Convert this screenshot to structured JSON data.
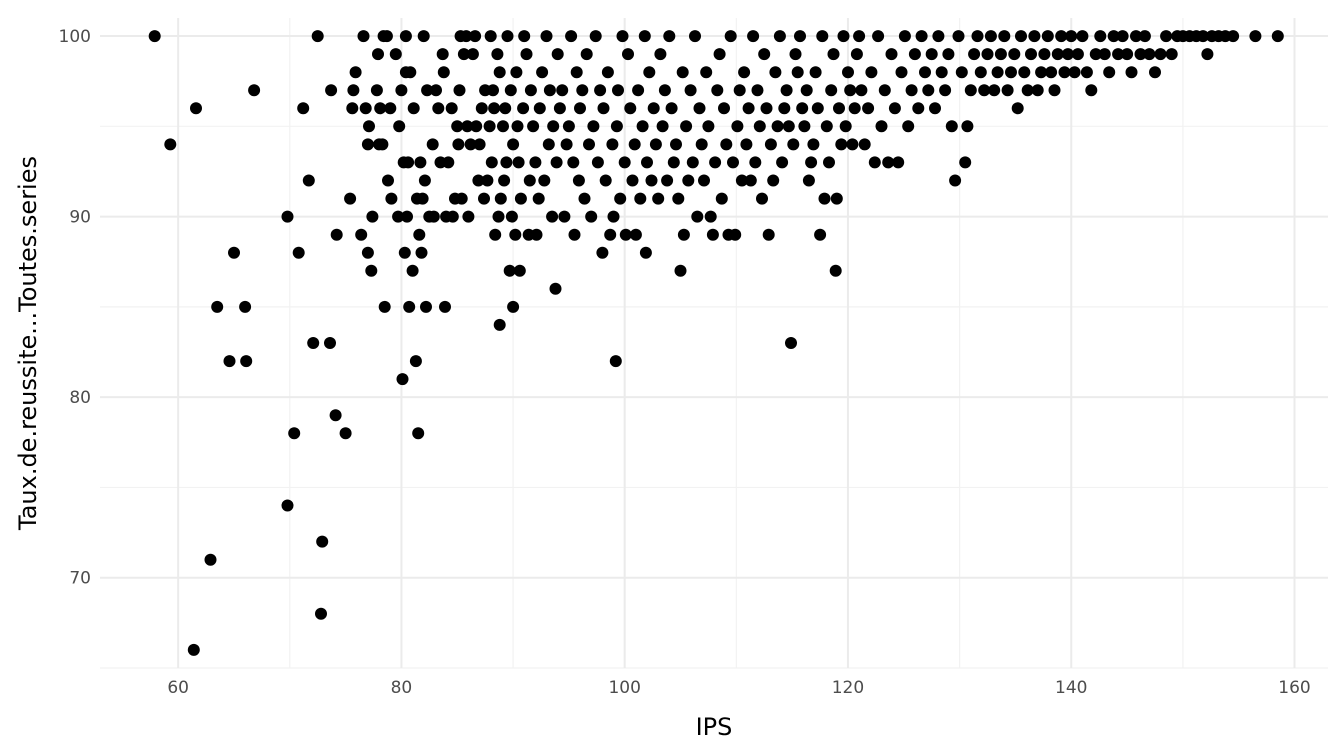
{
  "chart_data": {
    "type": "scatter",
    "title": "",
    "xlabel": "IPS",
    "ylabel": "Taux.de.reussite...Toutes.series",
    "xlim": [
      53,
      163
    ],
    "ylim": [
      65,
      101
    ],
    "x_ticks": [
      60,
      80,
      100,
      120,
      140,
      160
    ],
    "x_tick_labels": [
      "60",
      "80",
      "100",
      "120",
      "140",
      "160"
    ],
    "y_ticks": [
      70,
      80,
      90,
      100
    ],
    "y_tick_labels": [
      "70",
      "80",
      "90",
      "100"
    ],
    "grid": true,
    "legend": "none",
    "point_color": "#000000",
    "points": [
      [
        57.9,
        100
      ],
      [
        59.3,
        94
      ],
      [
        61.4,
        66
      ],
      [
        61.6,
        96
      ],
      [
        62.9,
        71
      ],
      [
        63.5,
        85
      ],
      [
        64.6,
        82
      ],
      [
        65.0,
        88
      ],
      [
        66.0,
        85
      ],
      [
        66.1,
        82
      ],
      [
        66.8,
        97
      ],
      [
        69.8,
        74
      ],
      [
        69.8,
        90
      ],
      [
        70.4,
        78
      ],
      [
        70.8,
        88
      ],
      [
        71.2,
        96
      ],
      [
        71.7,
        92
      ],
      [
        72.1,
        83
      ],
      [
        72.5,
        100
      ],
      [
        72.8,
        68
      ],
      [
        72.9,
        72
      ],
      [
        73.6,
        83
      ],
      [
        73.7,
        97
      ],
      [
        74.1,
        79
      ],
      [
        74.2,
        89
      ],
      [
        75.0,
        78
      ],
      [
        75.4,
        91
      ],
      [
        75.6,
        96
      ],
      [
        75.7,
        97
      ],
      [
        75.9,
        98
      ],
      [
        76.4,
        89
      ],
      [
        76.6,
        100
      ],
      [
        76.8,
        96
      ],
      [
        77.0,
        88
      ],
      [
        77.0,
        94
      ],
      [
        77.1,
        95
      ],
      [
        77.3,
        87
      ],
      [
        77.4,
        90
      ],
      [
        77.8,
        97
      ],
      [
        77.9,
        99
      ],
      [
        78.0,
        94
      ],
      [
        78.1,
        96
      ],
      [
        78.3,
        94
      ],
      [
        78.4,
        100
      ],
      [
        78.5,
        85
      ],
      [
        78.7,
        100
      ],
      [
        78.8,
        92
      ],
      [
        79.0,
        96
      ],
      [
        79.1,
        91
      ],
      [
        79.5,
        99
      ],
      [
        79.7,
        90
      ],
      [
        79.8,
        95
      ],
      [
        80.0,
        97
      ],
      [
        80.1,
        81
      ],
      [
        80.2,
        93
      ],
      [
        80.3,
        88
      ],
      [
        80.4,
        100
      ],
      [
        80.4,
        98
      ],
      [
        80.5,
        90
      ],
      [
        80.6,
        93
      ],
      [
        80.7,
        85
      ],
      [
        80.8,
        98
      ],
      [
        81.0,
        87
      ],
      [
        81.1,
        96
      ],
      [
        81.3,
        82
      ],
      [
        81.4,
        91
      ],
      [
        81.5,
        78
      ],
      [
        81.6,
        89
      ],
      [
        81.7,
        93
      ],
      [
        81.8,
        88
      ],
      [
        81.9,
        91
      ],
      [
        82.0,
        100
      ],
      [
        82.1,
        92
      ],
      [
        82.2,
        85
      ],
      [
        82.3,
        97
      ],
      [
        82.5,
        90
      ],
      [
        82.8,
        94
      ],
      [
        82.9,
        90
      ],
      [
        83.1,
        97
      ],
      [
        83.3,
        96
      ],
      [
        83.5,
        93
      ],
      [
        83.7,
        99
      ],
      [
        83.8,
        98
      ],
      [
        83.9,
        85
      ],
      [
        84.0,
        90
      ],
      [
        84.2,
        93
      ],
      [
        84.5,
        96
      ],
      [
        84.6,
        90
      ],
      [
        84.8,
        91
      ],
      [
        85.0,
        95
      ],
      [
        85.1,
        94
      ],
      [
        85.2,
        97
      ],
      [
        85.3,
        100
      ],
      [
        85.4,
        91
      ],
      [
        85.6,
        99
      ],
      [
        85.8,
        100
      ],
      [
        85.9,
        95
      ],
      [
        86.0,
        90
      ],
      [
        86.2,
        94
      ],
      [
        86.4,
        99
      ],
      [
        86.6,
        100
      ],
      [
        86.7,
        95
      ],
      [
        86.9,
        92
      ],
      [
        87.0,
        94
      ],
      [
        87.2,
        96
      ],
      [
        87.4,
        91
      ],
      [
        87.5,
        97
      ],
      [
        87.7,
        92
      ],
      [
        87.9,
        95
      ],
      [
        88.0,
        100
      ],
      [
        88.1,
        93
      ],
      [
        88.2,
        97
      ],
      [
        88.3,
        96
      ],
      [
        88.4,
        89
      ],
      [
        88.6,
        99
      ],
      [
        88.7,
        90
      ],
      [
        88.8,
        84
      ],
      [
        88.8,
        98
      ],
      [
        88.9,
        91
      ],
      [
        89.1,
        95
      ],
      [
        89.2,
        92
      ],
      [
        89.3,
        96
      ],
      [
        89.4,
        93
      ],
      [
        89.5,
        100
      ],
      [
        89.7,
        87
      ],
      [
        89.8,
        97
      ],
      [
        89.9,
        90
      ],
      [
        90.0,
        85
      ],
      [
        90.0,
        94
      ],
      [
        90.2,
        89
      ],
      [
        90.3,
        98
      ],
      [
        90.4,
        95
      ],
      [
        90.5,
        93
      ],
      [
        90.6,
        87
      ],
      [
        90.7,
        91
      ],
      [
        90.9,
        96
      ],
      [
        91.0,
        100
      ],
      [
        91.2,
        99
      ],
      [
        91.4,
        89
      ],
      [
        91.5,
        92
      ],
      [
        91.6,
        97
      ],
      [
        91.8,
        95
      ],
      [
        92.0,
        93
      ],
      [
        92.1,
        89
      ],
      [
        92.3,
        91
      ],
      [
        92.4,
        96
      ],
      [
        92.6,
        98
      ],
      [
        92.8,
        92
      ],
      [
        93.0,
        100
      ],
      [
        93.2,
        94
      ],
      [
        93.3,
        97
      ],
      [
        93.5,
        90
      ],
      [
        93.6,
        95
      ],
      [
        93.8,
        86
      ],
      [
        93.9,
        93
      ],
      [
        94.0,
        99
      ],
      [
        94.2,
        96
      ],
      [
        94.4,
        97
      ],
      [
        94.6,
        90
      ],
      [
        94.8,
        94
      ],
      [
        95.0,
        95
      ],
      [
        95.2,
        100
      ],
      [
        95.4,
        93
      ],
      [
        95.5,
        89
      ],
      [
        95.7,
        98
      ],
      [
        95.9,
        92
      ],
      [
        96.0,
        96
      ],
      [
        96.2,
        97
      ],
      [
        96.4,
        91
      ],
      [
        96.6,
        99
      ],
      [
        96.8,
        94
      ],
      [
        97.0,
        90
      ],
      [
        97.2,
        95
      ],
      [
        97.4,
        100
      ],
      [
        97.6,
        93
      ],
      [
        97.8,
        97
      ],
      [
        98.0,
        88
      ],
      [
        98.1,
        96
      ],
      [
        98.3,
        92
      ],
      [
        98.5,
        98
      ],
      [
        98.7,
        89
      ],
      [
        98.9,
        94
      ],
      [
        99.0,
        90
      ],
      [
        99.2,
        82
      ],
      [
        99.3,
        95
      ],
      [
        99.4,
        97
      ],
      [
        99.6,
        91
      ],
      [
        99.8,
        100
      ],
      [
        100.0,
        93
      ],
      [
        100.1,
        89
      ],
      [
        100.3,
        99
      ],
      [
        100.5,
        96
      ],
      [
        100.7,
        92
      ],
      [
        100.9,
        94
      ],
      [
        101.0,
        89
      ],
      [
        101.2,
        97
      ],
      [
        101.4,
        91
      ],
      [
        101.6,
        95
      ],
      [
        101.8,
        100
      ],
      [
        101.9,
        88
      ],
      [
        102.0,
        93
      ],
      [
        102.2,
        98
      ],
      [
        102.4,
        92
      ],
      [
        102.6,
        96
      ],
      [
        102.8,
        94
      ],
      [
        103.0,
        91
      ],
      [
        103.2,
        99
      ],
      [
        103.4,
        95
      ],
      [
        103.6,
        97
      ],
      [
        103.8,
        92
      ],
      [
        104.0,
        100
      ],
      [
        104.2,
        96
      ],
      [
        104.4,
        93
      ],
      [
        104.6,
        94
      ],
      [
        104.8,
        91
      ],
      [
        105.0,
        87
      ],
      [
        105.2,
        98
      ],
      [
        105.3,
        89
      ],
      [
        105.5,
        95
      ],
      [
        105.7,
        92
      ],
      [
        105.9,
        97
      ],
      [
        106.1,
        93
      ],
      [
        106.3,
        100
      ],
      [
        106.5,
        90
      ],
      [
        106.7,
        96
      ],
      [
        106.9,
        94
      ],
      [
        107.1,
        92
      ],
      [
        107.3,
        98
      ],
      [
        107.5,
        95
      ],
      [
        107.7,
        90
      ],
      [
        107.9,
        89
      ],
      [
        108.1,
        93
      ],
      [
        108.3,
        97
      ],
      [
        108.5,
        99
      ],
      [
        108.7,
        91
      ],
      [
        108.9,
        96
      ],
      [
        109.1,
        94
      ],
      [
        109.3,
        89
      ],
      [
        109.5,
        100
      ],
      [
        109.7,
        93
      ],
      [
        109.9,
        89
      ],
      [
        110.1,
        95
      ],
      [
        110.3,
        97
      ],
      [
        110.5,
        92
      ],
      [
        110.7,
        98
      ],
      [
        110.9,
        94
      ],
      [
        111.1,
        96
      ],
      [
        111.3,
        92
      ],
      [
        111.5,
        100
      ],
      [
        111.7,
        93
      ],
      [
        111.9,
        97
      ],
      [
        112.1,
        95
      ],
      [
        112.3,
        91
      ],
      [
        112.5,
        99
      ],
      [
        112.7,
        96
      ],
      [
        112.9,
        89
      ],
      [
        113.1,
        94
      ],
      [
        113.3,
        92
      ],
      [
        113.5,
        98
      ],
      [
        113.7,
        95
      ],
      [
        113.9,
        100
      ],
      [
        114.1,
        93
      ],
      [
        114.3,
        96
      ],
      [
        114.5,
        97
      ],
      [
        114.7,
        95
      ],
      [
        114.9,
        83
      ],
      [
        115.1,
        94
      ],
      [
        115.3,
        99
      ],
      [
        115.5,
        98
      ],
      [
        115.7,
        100
      ],
      [
        115.9,
        96
      ],
      [
        116.1,
        95
      ],
      [
        116.3,
        97
      ],
      [
        116.5,
        92
      ],
      [
        116.7,
        93
      ],
      [
        116.9,
        94
      ],
      [
        117.1,
        98
      ],
      [
        117.3,
        96
      ],
      [
        117.5,
        89
      ],
      [
        117.7,
        100
      ],
      [
        117.9,
        91
      ],
      [
        118.1,
        95
      ],
      [
        118.3,
        93
      ],
      [
        118.5,
        97
      ],
      [
        118.7,
        99
      ],
      [
        118.9,
        87
      ],
      [
        119.0,
        91
      ],
      [
        119.2,
        96
      ],
      [
        119.4,
        94
      ],
      [
        119.6,
        100
      ],
      [
        119.8,
        95
      ],
      [
        120.0,
        98
      ],
      [
        120.2,
        97
      ],
      [
        120.4,
        94
      ],
      [
        120.6,
        96
      ],
      [
        120.8,
        99
      ],
      [
        121.0,
        100
      ],
      [
        121.2,
        97
      ],
      [
        121.5,
        94
      ],
      [
        121.8,
        96
      ],
      [
        122.1,
        98
      ],
      [
        122.4,
        93
      ],
      [
        122.7,
        100
      ],
      [
        123.0,
        95
      ],
      [
        123.3,
        97
      ],
      [
        123.6,
        93
      ],
      [
        123.9,
        99
      ],
      [
        124.2,
        96
      ],
      [
        124.5,
        93
      ],
      [
        124.8,
        98
      ],
      [
        125.1,
        100
      ],
      [
        125.4,
        95
      ],
      [
        125.7,
        97
      ],
      [
        126.0,
        99
      ],
      [
        126.3,
        96
      ],
      [
        126.6,
        100
      ],
      [
        126.9,
        98
      ],
      [
        127.2,
        97
      ],
      [
        127.5,
        99
      ],
      [
        127.8,
        96
      ],
      [
        128.1,
        100
      ],
      [
        128.4,
        98
      ],
      [
        128.7,
        97
      ],
      [
        129.0,
        99
      ],
      [
        129.3,
        95
      ],
      [
        129.6,
        92
      ],
      [
        129.9,
        100
      ],
      [
        130.2,
        98
      ],
      [
        130.5,
        93
      ],
      [
        130.7,
        95
      ],
      [
        131.0,
        97
      ],
      [
        131.3,
        99
      ],
      [
        131.6,
        100
      ],
      [
        131.9,
        98
      ],
      [
        132.2,
        97
      ],
      [
        132.5,
        99
      ],
      [
        132.8,
        100
      ],
      [
        133.1,
        97
      ],
      [
        133.4,
        98
      ],
      [
        133.7,
        99
      ],
      [
        134.0,
        100
      ],
      [
        134.3,
        97
      ],
      [
        134.6,
        98
      ],
      [
        134.9,
        99
      ],
      [
        135.2,
        96
      ],
      [
        135.5,
        100
      ],
      [
        135.8,
        98
      ],
      [
        136.1,
        97
      ],
      [
        136.4,
        99
      ],
      [
        136.7,
        100
      ],
      [
        137.0,
        97
      ],
      [
        137.3,
        98
      ],
      [
        137.6,
        99
      ],
      [
        137.9,
        100
      ],
      [
        138.2,
        98
      ],
      [
        138.5,
        97
      ],
      [
        138.8,
        99
      ],
      [
        139.1,
        100
      ],
      [
        139.4,
        98
      ],
      [
        139.7,
        99
      ],
      [
        140.0,
        100
      ],
      [
        140.3,
        98
      ],
      [
        140.6,
        99
      ],
      [
        141.0,
        100
      ],
      [
        141.4,
        98
      ],
      [
        141.8,
        97
      ],
      [
        142.2,
        99
      ],
      [
        142.6,
        100
      ],
      [
        143.0,
        99
      ],
      [
        143.4,
        98
      ],
      [
        143.8,
        100
      ],
      [
        144.2,
        99
      ],
      [
        144.6,
        100
      ],
      [
        145.0,
        99
      ],
      [
        145.4,
        98
      ],
      [
        145.8,
        100
      ],
      [
        146.2,
        99
      ],
      [
        146.6,
        100
      ],
      [
        147.0,
        99
      ],
      [
        147.5,
        98
      ],
      [
        148.0,
        99
      ],
      [
        148.5,
        100
      ],
      [
        149.0,
        99
      ],
      [
        149.5,
        100
      ],
      [
        150.0,
        100
      ],
      [
        150.6,
        100
      ],
      [
        151.2,
        100
      ],
      [
        151.8,
        100
      ],
      [
        152.2,
        99
      ],
      [
        152.6,
        100
      ],
      [
        153.2,
        100
      ],
      [
        153.8,
        100
      ],
      [
        154.5,
        100
      ],
      [
        156.5,
        100
      ],
      [
        158.5,
        100
      ]
    ]
  }
}
